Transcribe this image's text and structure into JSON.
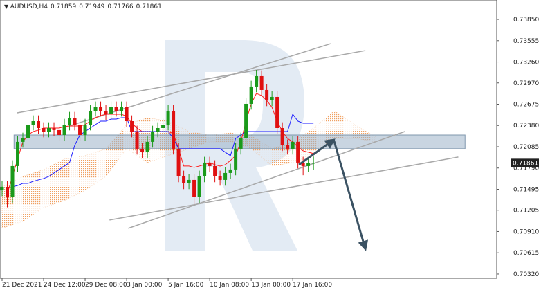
{
  "chart_data": {
    "type": "candlestick",
    "symbol": "AUDUSD,H4",
    "up_color": "#1a9a1a",
    "down_color": "#e01010",
    "xlim": [
      -0.4,
      95.3
    ],
    "ylim": [
      0.70262,
      0.74119
    ],
    "xticks": [
      {
        "value": 0,
        "label": "21 Dec 2021"
      },
      {
        "value": 8,
        "label": "24 Dec 12:00"
      },
      {
        "value": 16,
        "label": "29 Dec 08:00"
      },
      {
        "value": 24,
        "label": "3 Jan 00:00"
      },
      {
        "value": 32,
        "label": "5 Jan 16:00"
      },
      {
        "value": 40,
        "label": "10 Jan 08:00"
      },
      {
        "value": 48,
        "label": "13 Jan 00:00"
      },
      {
        "value": 56,
        "label": "17 Jan 16:00"
      }
    ],
    "yticks": [
      {
        "value": 0.7385,
        "label": "0.73850"
      },
      0.73555,
      {
        "value": 0.7326,
        "label": "0.73260"
      },
      {
        "value": 0.7297,
        "label": "0.72970"
      },
      0.72675,
      {
        "value": 0.7238,
        "label": "0.72380"
      },
      0.72085,
      {
        "value": 0.7179,
        "label": "0.71790"
      },
      0.71495,
      0.71205,
      {
        "value": 0.7091,
        "label": "0.70910"
      },
      0.70615,
      {
        "value": 0.7032,
        "label": "0.70320"
      }
    ],
    "open": [
      0.7148,
      0.71529,
      0.71385,
      0.71817,
      0.72153,
      0.722,
      0.72392,
      0.7244,
      0.72344,
      0.72296,
      0.72344,
      0.72316,
      0.72248,
      0.72392,
      0.72488,
      0.72392,
      0.72248,
      0.72392,
      0.72584,
      0.72632,
      0.72584,
      0.72536,
      0.72632,
      0.72584,
      0.72632,
      0.7244,
      0.72296,
      0.72057,
      0.72009,
      0.72153,
      0.72296,
      0.72344,
      0.72392,
      0.72584,
      0.72057,
      0.71673,
      0.71577,
      0.71625,
      0.71385,
      0.71673,
      0.71865,
      0.71817,
      0.71673,
      0.71625,
      0.71721,
      0.71769,
      0.72057,
      0.722,
      0.7268,
      0.7292,
      0.73064,
      0.72872,
      0.72728,
      0.72776,
      0.72344,
      0.72105,
      0.72057,
      0.72153,
      0.71865,
      0.71817,
      0.71859
    ],
    "high": [
      0.71609,
      0.71609,
      0.71897,
      0.72233,
      0.7228,
      0.72472,
      0.7252,
      0.7252,
      0.72424,
      0.72424,
      0.72424,
      0.72396,
      0.72472,
      0.72568,
      0.72568,
      0.72472,
      0.72472,
      0.72664,
      0.72712,
      0.72712,
      0.72664,
      0.72712,
      0.72712,
      0.72712,
      0.72712,
      0.7252,
      0.72376,
      0.72137,
      0.72233,
      0.72376,
      0.72424,
      0.72472,
      0.72664,
      0.72664,
      0.72137,
      0.71753,
      0.71705,
      0.71705,
      0.71753,
      0.71945,
      0.71945,
      0.71897,
      0.71753,
      0.71801,
      0.71849,
      0.72137,
      0.7228,
      0.7276,
      0.73,
      0.7315,
      0.73144,
      0.72952,
      0.72856,
      0.72856,
      0.72424,
      0.72185,
      0.72233,
      0.72233,
      0.71945,
      0.71939,
      0.71949
    ],
    "low": [
      0.714,
      0.71245,
      0.71305,
      0.71737,
      0.72073,
      0.7212,
      0.72312,
      0.72264,
      0.72216,
      0.72216,
      0.72236,
      0.72168,
      0.72168,
      0.72312,
      0.72312,
      0.72168,
      0.72168,
      0.72312,
      0.72504,
      0.72504,
      0.72456,
      0.72456,
      0.72504,
      0.72504,
      0.7236,
      0.72216,
      0.71977,
      0.71929,
      0.71929,
      0.72073,
      0.72216,
      0.72264,
      0.72312,
      0.71977,
      0.71593,
      0.71497,
      0.71497,
      0.7129,
      0.71305,
      0.71593,
      0.71737,
      0.71593,
      0.71545,
      0.71545,
      0.71641,
      0.71689,
      0.71977,
      0.7212,
      0.726,
      0.7284,
      0.72792,
      0.72648,
      0.72648,
      0.72264,
      0.72025,
      0.71977,
      0.71977,
      0.71785,
      0.7169,
      0.71737,
      0.71766
    ],
    "close": [
      0.71529,
      0.71385,
      0.71817,
      0.72153,
      0.722,
      0.72392,
      0.7244,
      0.72344,
      0.72296,
      0.72344,
      0.72316,
      0.72248,
      0.72392,
      0.72488,
      0.72392,
      0.72248,
      0.72392,
      0.72584,
      0.72632,
      0.72584,
      0.72536,
      0.72632,
      0.72584,
      0.72632,
      0.7244,
      0.72296,
      0.72057,
      0.72009,
      0.72153,
      0.72296,
      0.72344,
      0.72392,
      0.72584,
      0.72057,
      0.71673,
      0.71577,
      0.71625,
      0.71385,
      0.71673,
      0.71865,
      0.71817,
      0.71673,
      0.71625,
      0.71721,
      0.71769,
      0.72057,
      0.722,
      0.7268,
      0.7292,
      0.73064,
      0.72872,
      0.72728,
      0.72776,
      0.72344,
      0.72105,
      0.72057,
      0.72153,
      0.71865,
      0.71817,
      0.71859,
      0.71861
    ],
    "lines": [
      {
        "color": "#ff1a1a",
        "values": [
          null,
          0.71433,
          0.71673,
          0.71913,
          0.72153,
          0.72248,
          0.72296,
          0.72316,
          0.72344,
          0.72344,
          0.72344,
          0.72344,
          0.72364,
          0.72373,
          0.72373,
          0.72373,
          0.72392,
          0.7244,
          0.72488,
          0.72517,
          0.72536,
          0.72536,
          0.72536,
          0.72536,
          0.72507,
          0.72411,
          0.72344,
          0.72296,
          0.72296,
          0.72296,
          0.72296,
          0.72296,
          0.72296,
          0.72268,
          0.72057,
          0.71817,
          0.71817,
          0.71798,
          0.71817,
          0.71836,
          0.71865,
          0.71836,
          0.71817,
          0.71836,
          0.71894,
          0.71961,
          0.72153,
          0.7244,
          0.7268,
          0.72824,
          0.72795,
          0.72728,
          0.72632,
          0.7244,
          0.72296,
          0.722,
          0.72153,
          0.72085,
          0.72028,
          0.72009,
          0.7199
        ]
      },
      {
        "color": "#1a1aff",
        "values": [
          null,
          null,
          0.71529,
          0.71548,
          0.71577,
          0.71577,
          0.71606,
          0.71625,
          0.71644,
          0.71673,
          0.71721,
          0.71769,
          0.71817,
          0.71865,
          0.72105,
          0.72248,
          0.72296,
          0.72344,
          0.72392,
          0.7244,
          0.7244,
          0.72469,
          0.72469,
          0.72488,
          0.72488,
          0.72296,
          0.72296,
          0.72296,
          0.72296,
          0.72296,
          0.72296,
          0.72296,
          0.72296,
          0.722,
          0.72057,
          0.72057,
          0.72057,
          0.72057,
          0.72057,
          0.72057,
          0.72057,
          0.72057,
          0.72057,
          0.72009,
          0.71961,
          0.722,
          0.72248,
          0.72296,
          0.72296,
          0.72296,
          0.72296,
          0.72296,
          0.72296,
          0.72296,
          0.72296,
          0.72296,
          0.72536,
          0.7244,
          0.72411,
          0.72411,
          0.72411
        ]
      }
    ],
    "cloud": {
      "color": "#f0a060",
      "x": [
        0,
        4,
        8,
        12,
        16,
        20,
        24,
        28,
        32,
        36,
        40,
        44,
        48,
        52,
        56,
        60,
        64,
        68,
        72
      ],
      "upper": [
        0.71529,
        0.71673,
        0.71769,
        0.71913,
        0.71961,
        0.72057,
        0.72392,
        0.72488,
        0.7244,
        0.72296,
        0.72248,
        0.72277,
        0.72248,
        0.72057,
        0.72153,
        0.72344,
        0.72584,
        0.72392,
        0.7222
      ],
      "lower": [
        0.70954,
        0.7105,
        0.71242,
        0.71337,
        0.71481,
        0.71673,
        0.72057,
        0.71865,
        0.71961,
        0.72057,
        0.72153,
        0.72153,
        0.72057,
        0.71817,
        0.71865,
        0.71961,
        0.722,
        0.722,
        0.72153
      ]
    },
    "zone": {
      "color": "#9db3c8",
      "x": [
        2.3,
        89.2
      ],
      "y": [
        0.72057,
        0.72248
      ]
    },
    "trendline_color": "#a8a8a8",
    "trendlines": [
      {
        "x": [
          2.9,
          70
        ],
        "y": [
          0.72555,
          0.73418
        ]
      },
      {
        "x": [
          12.9,
          63.3
        ],
        "y": [
          0.72373,
          0.73514
        ]
      },
      {
        "x": [
          24.3,
          77.6
        ],
        "y": [
          0.70954,
          0.72296
        ]
      },
      {
        "x": [
          20.7,
          87.9
        ],
        "y": [
          0.71069,
          0.71942
        ]
      }
    ],
    "forecast": {
      "color": "#3b5263",
      "x": [
        57.2,
        63.9,
        70
      ],
      "y": [
        0.71836,
        0.72181,
        0.70666
      ]
    }
  }
}
